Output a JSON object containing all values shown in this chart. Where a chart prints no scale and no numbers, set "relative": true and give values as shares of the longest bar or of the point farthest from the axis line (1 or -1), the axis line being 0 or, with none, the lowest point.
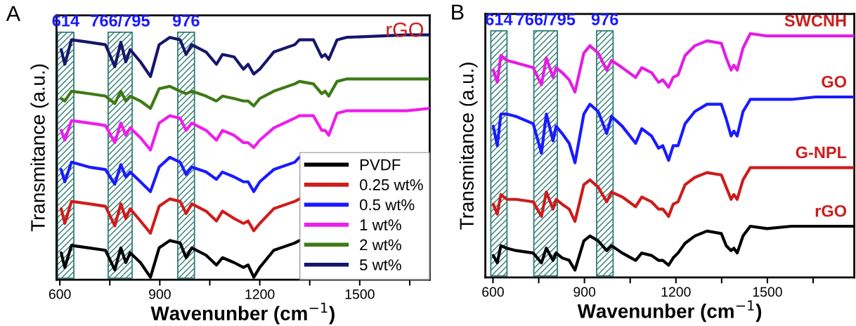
{
  "chart_data": [
    {
      "type": "line",
      "title": "A",
      "xlabel": "Wavenunber (cm$^{−1}$)",
      "ylabel": "Transmitance (a.u.)",
      "relative": true,
      "legend": "bottom right",
      "annotations": [
        "rGO"
      ],
      "xlim": [
        590,
        1710
      ],
      "xticks": [
        600,
        {
          "value": 750,
          "label": null
        },
        900,
        {
          "value": 1050,
          "label": null
        },
        1200,
        {
          "value": 1350,
          "label": null
        },
        1500,
        {
          "value": 1650,
          "label": null
        }
      ],
      "bands": [
        {
          "axis": "x",
          "from": 593,
          "to": 642,
          "label": "614",
          "color": "#2e7d74"
        },
        {
          "axis": "x",
          "from": 745,
          "to": 817,
          "label": "766/795",
          "color": "#2e7d74"
        },
        {
          "axis": "x",
          "from": 954,
          "to": 1004,
          "label": "976",
          "color": "#2e7d74"
        }
      ],
      "x": [
        604,
        615,
        635,
        688,
        737,
        765,
        783,
        798,
        811,
        842,
        872,
        898,
        930,
        961,
        979,
        996,
        1039,
        1070,
        1088,
        1123,
        1151,
        1165,
        1182,
        1200,
        1242,
        1305,
        1319,
        1361,
        1386,
        1396,
        1407,
        1432,
        1460,
        1642,
        1709
      ],
      "series": [
        {
          "name": "PVDF",
          "color": "#000000",
          "values": [
            0.11,
            0.05,
            0.14,
            0.13,
            0.12,
            0.04,
            0.13,
            0.07,
            0.11,
            0.07,
            0.01,
            0.13,
            0.16,
            0.15,
            0.09,
            0.13,
            0.1,
            0.06,
            0.09,
            0.07,
            0.05,
            0.06,
            0.01,
            0.05,
            0.12,
            0.15,
            0.16,
            null,
            null,
            null,
            null,
            null,
            null,
            null,
            null
          ]
        },
        {
          "name": "0.25 wt%",
          "color": "#d01c1c",
          "values": [
            0.29,
            0.23,
            0.32,
            0.31,
            0.3,
            0.22,
            0.31,
            0.25,
            0.29,
            0.24,
            0.19,
            0.3,
            0.33,
            0.32,
            0.27,
            0.31,
            0.28,
            0.24,
            0.28,
            0.25,
            0.23,
            0.24,
            0.2,
            0.23,
            0.29,
            0.32,
            0.33,
            null,
            null,
            null,
            null,
            null,
            null,
            null,
            null
          ]
        },
        {
          "name": "0.5 wt%",
          "color": "#1a1aff",
          "values": [
            0.45,
            0.4,
            0.48,
            0.46,
            0.45,
            0.39,
            0.47,
            0.42,
            0.44,
            0.4,
            0.36,
            0.46,
            0.5,
            0.48,
            0.43,
            0.46,
            0.44,
            0.41,
            0.44,
            0.42,
            0.4,
            0.4,
            0.36,
            0.4,
            0.45,
            0.48,
            0.5,
            null,
            null,
            null,
            null,
            null,
            null,
            null,
            null
          ]
        },
        {
          "name": "1 wt%",
          "color": "#ee1cee",
          "values": [
            0.61,
            0.57,
            0.65,
            0.64,
            0.63,
            0.56,
            0.64,
            0.59,
            0.62,
            0.58,
            0.53,
            0.64,
            0.67,
            0.66,
            0.61,
            0.64,
            0.61,
            0.57,
            0.61,
            0.59,
            0.56,
            0.56,
            0.54,
            0.57,
            0.62,
            0.66,
            0.67,
            0.67,
            0.61,
            0.61,
            0.59,
            0.68,
            0.69,
            0.69,
            0.7
          ]
        },
        {
          "name": "2 wt%",
          "color": "#3d7a14",
          "values": [
            0.74,
            0.73,
            0.77,
            0.76,
            0.75,
            0.72,
            0.77,
            0.73,
            0.75,
            0.73,
            0.7,
            0.78,
            0.79,
            0.77,
            0.76,
            0.77,
            0.75,
            0.73,
            0.75,
            0.74,
            0.73,
            0.73,
            0.71,
            0.74,
            0.77,
            0.8,
            0.81,
            0.8,
            0.76,
            0.77,
            0.75,
            0.81,
            0.82,
            0.82,
            0.82
          ]
        },
        {
          "name": "5 wt%",
          "color": "#17166b",
          "values": [
            0.94,
            0.88,
            0.98,
            0.97,
            0.96,
            0.87,
            0.97,
            0.89,
            0.94,
            0.89,
            0.83,
            0.96,
            0.99,
            0.98,
            0.92,
            0.96,
            0.93,
            0.88,
            0.92,
            0.91,
            0.86,
            0.88,
            0.84,
            0.86,
            0.93,
            0.96,
            0.98,
            0.98,
            0.91,
            0.92,
            0.9,
            0.98,
            0.99,
            1.0,
            1.0
          ]
        }
      ]
    },
    {
      "type": "line",
      "title": "B",
      "xlabel": "Wavenunber (cm$^{−1}$)",
      "ylabel": "Transmitance (a.u.)",
      "relative": true,
      "xlim": [
        575,
        1785
      ],
      "xticks": [
        600,
        {
          "value": 750,
          "label": null
        },
        900,
        {
          "value": 1050,
          "label": null
        },
        1200,
        {
          "value": 1350,
          "label": null
        },
        1500,
        {
          "value": 1650,
          "label": null
        }
      ],
      "bands": [
        {
          "axis": "x",
          "from": 593,
          "to": 646,
          "label": "614",
          "color": "#2e7d74"
        },
        {
          "axis": "x",
          "from": 734,
          "to": 811,
          "label": "766/795",
          "color": "#2e7d74"
        },
        {
          "axis": "x",
          "from": 940,
          "to": 994,
          "label": "976",
          "color": "#2e7d74"
        }
      ],
      "x": [
        601,
        614,
        626,
        645,
        676,
        732,
        759,
        775,
        797,
        807,
        827,
        850,
        869,
        898,
        918,
        945,
        973,
        989,
        1024,
        1068,
        1088,
        1120,
        1143,
        1157,
        1176,
        1191,
        1207,
        1230,
        1262,
        1302,
        1349,
        1365,
        1381,
        1390,
        1401,
        1420,
        1444,
        1499,
        1579,
        1658,
        1784
      ],
      "series": [
        {
          "name": "SWCNH",
          "color": "#e41ce4",
          "values": [
            0.85,
            0.8,
            0.91,
            0.89,
            0.88,
            0.86,
            0.79,
            0.9,
            0.82,
            0.86,
            0.84,
            0.81,
            0.76,
            0.92,
            0.95,
            0.92,
            0.85,
            0.89,
            0.86,
            0.82,
            0.86,
            0.84,
            0.8,
            0.81,
            0.78,
            0.82,
            0.83,
            0.91,
            0.95,
            0.97,
            0.96,
            0.9,
            0.85,
            0.87,
            0.85,
            0.94,
            1.0,
            0.99,
            0.99,
            0.99,
            0.99
          ]
        },
        {
          "name": "GO",
          "color": "#1a1aff",
          "values": [
            0.62,
            0.54,
            0.67,
            0.67,
            0.66,
            0.63,
            0.51,
            0.67,
            0.56,
            0.62,
            0.59,
            0.55,
            0.47,
            0.67,
            0.71,
            0.68,
            0.59,
            0.66,
            0.62,
            0.55,
            0.61,
            0.58,
            0.53,
            0.54,
            0.48,
            0.54,
            0.54,
            0.63,
            0.68,
            0.71,
            0.71,
            0.65,
            0.58,
            0.6,
            0.58,
            0.68,
            0.73,
            0.73,
            0.73,
            0.74,
            0.74
          ]
        },
        {
          "name": "G-NPL",
          "color": "#cc1c1c",
          "values": [
            0.3,
            0.26,
            0.34,
            0.32,
            0.32,
            0.31,
            0.25,
            0.35,
            0.28,
            0.32,
            0.3,
            0.28,
            0.23,
            0.38,
            0.4,
            0.37,
            0.31,
            0.35,
            0.33,
            0.29,
            0.33,
            0.31,
            0.28,
            0.28,
            0.25,
            0.3,
            0.31,
            0.38,
            0.41,
            0.43,
            0.42,
            0.37,
            0.32,
            0.34,
            0.32,
            0.4,
            0.45,
            0.45,
            0.45,
            0.45,
            0.45
          ]
        },
        {
          "name": "rGO",
          "color": "#000000",
          "values": [
            0.09,
            0.06,
            0.13,
            0.12,
            0.11,
            0.1,
            0.06,
            0.12,
            0.07,
            0.1,
            0.08,
            0.07,
            0.03,
            0.15,
            0.17,
            0.15,
            0.11,
            0.13,
            0.1,
            0.07,
            0.1,
            0.09,
            0.07,
            0.07,
            0.05,
            0.08,
            0.1,
            0.14,
            0.17,
            0.19,
            0.18,
            0.13,
            0.11,
            0.12,
            0.1,
            0.17,
            0.21,
            0.2,
            0.21,
            0.21,
            0.21
          ]
        }
      ]
    }
  ]
}
